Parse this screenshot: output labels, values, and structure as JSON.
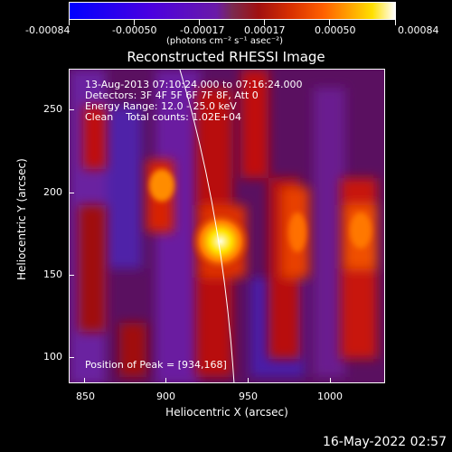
{
  "colorbar": {
    "ticks": [
      "-0.00084",
      "-0.00050",
      "-0.00017",
      "0.00017",
      "0.00050",
      "0.00084"
    ],
    "unit_label": "(photons cm⁻² s⁻¹ asec⁻²)"
  },
  "plot": {
    "title": "Reconstructed RHESSI Image",
    "xlabel": "Heliocentric X (arcsec)",
    "ylabel": "Heliocentric Y (arcsec)",
    "xticks": [
      "850",
      "900",
      "950",
      "1000"
    ],
    "yticks": [
      "100",
      "150",
      "200",
      "250"
    ],
    "info": [
      "13-Aug-2013 07:10:24.000 to 07:16:24.000",
      "Detectors: 3F 4F 5F 6F 7F 8F, Att 0",
      "Energy Range: 12.0 - 25.0 keV",
      "Clean    Total counts: 1.02E+04"
    ],
    "peak_label": "Position of Peak = [934,168]"
  },
  "footer": {
    "timestamp": "16-May-2022 02:57"
  },
  "colors": {
    "background": "#000000",
    "axes": "#ffffff"
  }
}
